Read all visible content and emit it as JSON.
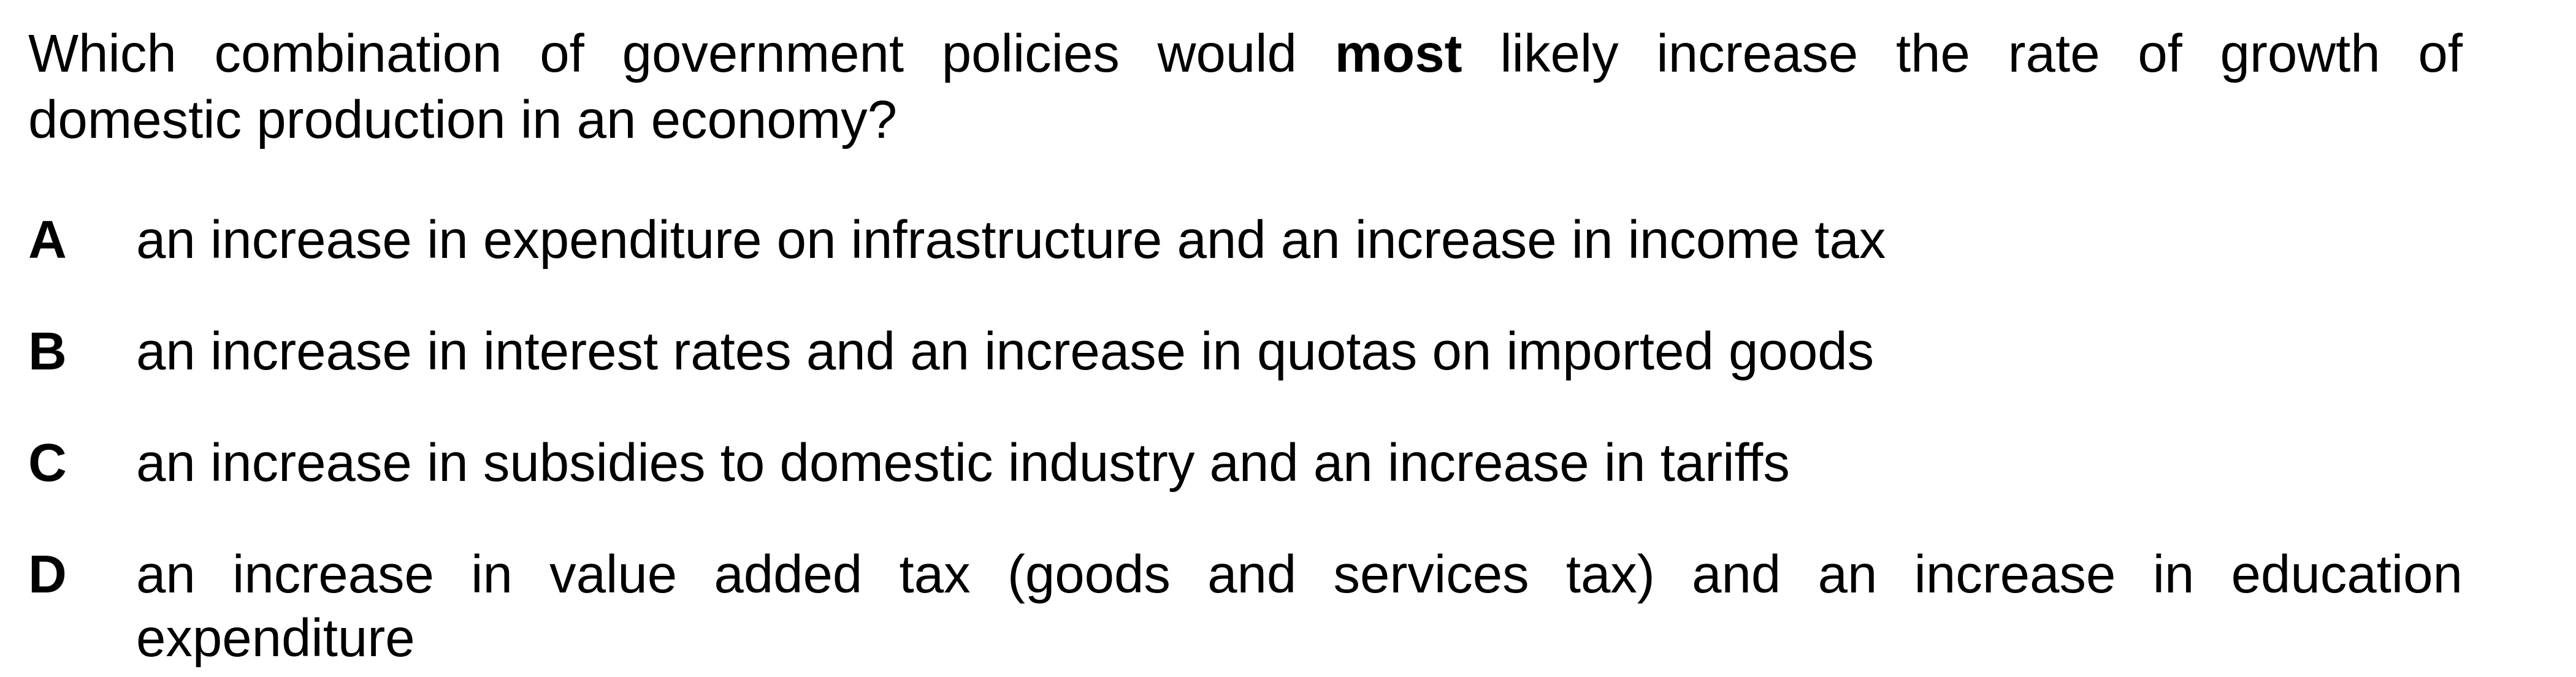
{
  "question": {
    "pre_bold": "Which combination of government policies would",
    "bold": "most",
    "post_bold_line1": "likely increase the rate of growth of",
    "line2": "domestic production in an economy?"
  },
  "options": [
    {
      "letter": "A",
      "text": "an increase in expenditure on infrastructure and an increase in income tax"
    },
    {
      "letter": "B",
      "text": "an increase in interest rates and an increase in quotas on imported goods"
    },
    {
      "letter": "C",
      "text": "an increase in subsidies to domestic industry and an increase in tariffs"
    },
    {
      "letter": "D",
      "text_line1": "an increase in value added tax (goods and services tax) and an increase in education",
      "text_line2": "expenditure"
    }
  ]
}
